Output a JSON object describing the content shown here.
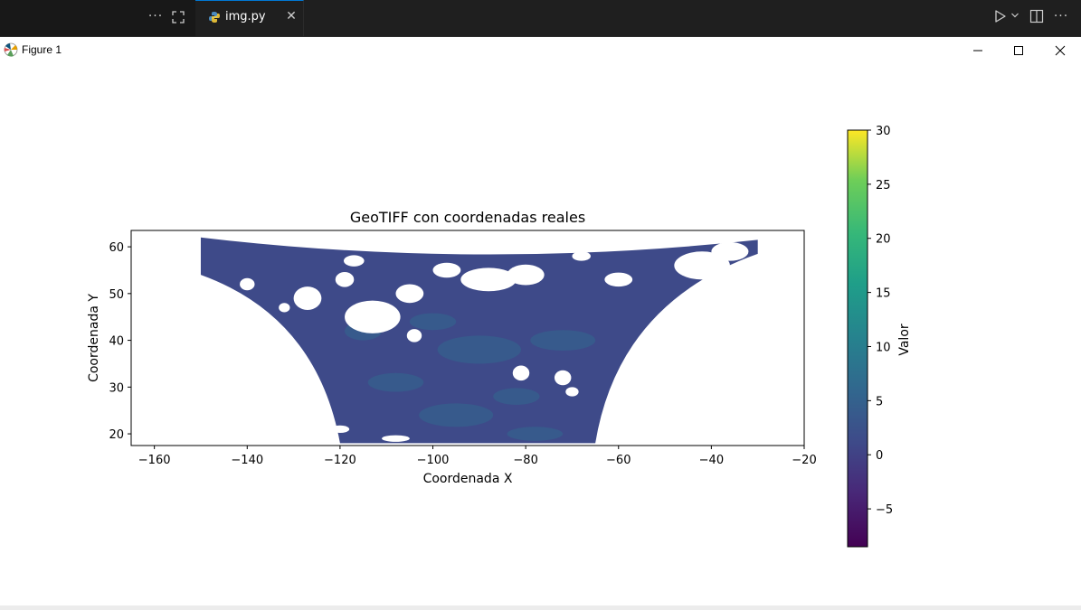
{
  "editor": {
    "more_label": "···",
    "tab_label": "img.py",
    "close_label": "✕",
    "actions_more_label": "···"
  },
  "window": {
    "title": "Figure 1"
  },
  "chart_data": {
    "type": "heatmap",
    "title": "GeoTIFF con coordenadas reales",
    "xlabel": "Coordenada X",
    "ylabel": "Coordenada Y",
    "xlim": [
      -165,
      -20
    ],
    "ylim": [
      17.5,
      63.5
    ],
    "xticks": [
      -160,
      -140,
      -120,
      -100,
      -80,
      -60,
      -40,
      -20
    ],
    "yticks": [
      20,
      30,
      40,
      50,
      60
    ],
    "colorbar": {
      "label": "Valor",
      "range": [
        -8.5,
        30
      ],
      "ticks": [
        30,
        25,
        20,
        15,
        10,
        5,
        0,
        -5
      ],
      "colormap": "viridis"
    },
    "data_extent": {
      "x_top": [
        -150,
        -30
      ],
      "x_bottom": [
        -120,
        -65
      ],
      "y": [
        18,
        62
      ]
    },
    "dominant_color": "#3e4a89",
    "nodata_color": "#ffffff",
    "grid": false
  }
}
